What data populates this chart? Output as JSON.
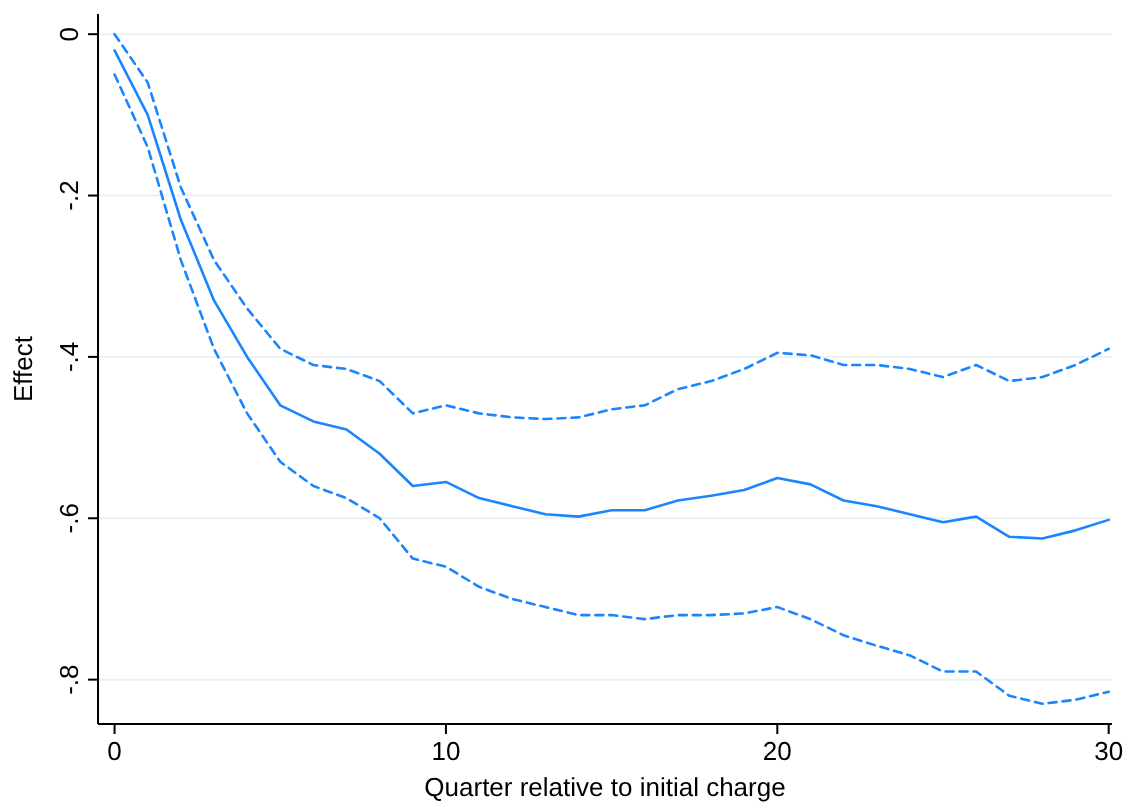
{
  "chart_data": {
    "type": "line",
    "xlabel": "Quarter relative to initial charge",
    "ylabel": "Effect",
    "x": [
      0,
      1,
      2,
      3,
      4,
      5,
      6,
      7,
      8,
      9,
      10,
      11,
      12,
      13,
      14,
      15,
      16,
      17,
      18,
      19,
      20,
      21,
      22,
      23,
      24,
      25,
      26,
      27,
      28,
      29,
      30
    ],
    "series": [
      {
        "color": "#1a85ff",
        "line_style": "solid",
        "values": [
          -0.02,
          -0.1,
          -0.23,
          -0.33,
          -0.4,
          -0.46,
          -0.48,
          -0.49,
          -0.52,
          -0.56,
          -0.555,
          -0.575,
          -0.585,
          -0.595,
          -0.598,
          -0.59,
          -0.59,
          -0.578,
          -0.572,
          -0.565,
          -0.55,
          -0.558,
          -0.578,
          -0.585,
          -0.595,
          -0.605,
          -0.598,
          -0.623,
          -0.625,
          -0.615,
          -0.602
        ]
      },
      {
        "color": "#1a85ff",
        "line_style": "dashed",
        "values": [
          0.0,
          -0.06,
          -0.19,
          -0.28,
          -0.34,
          -0.39,
          -0.41,
          -0.415,
          -0.43,
          -0.47,
          -0.46,
          -0.47,
          -0.475,
          -0.477,
          -0.475,
          -0.465,
          -0.46,
          -0.44,
          -0.43,
          -0.415,
          -0.395,
          -0.398,
          -0.41,
          -0.41,
          -0.415,
          -0.425,
          -0.41,
          -0.43,
          -0.425,
          -0.41,
          -0.39
        ]
      },
      {
        "color": "#1a85ff",
        "line_style": "dashed",
        "values": [
          -0.05,
          -0.14,
          -0.28,
          -0.39,
          -0.47,
          -0.53,
          -0.56,
          -0.575,
          -0.6,
          -0.65,
          -0.66,
          -0.685,
          -0.7,
          -0.71,
          -0.72,
          -0.72,
          -0.725,
          -0.72,
          -0.72,
          -0.718,
          -0.71,
          -0.725,
          -0.745,
          -0.758,
          -0.77,
          -0.79,
          -0.79,
          -0.82,
          -0.83,
          -0.825,
          -0.815
        ]
      }
    ],
    "xlim": [
      -0.5,
      30.1
    ],
    "xticks": [
      0,
      10,
      20,
      30
    ],
    "ylim": [
      -0.855,
      0.025
    ],
    "yticks": [
      {
        "value": 0,
        "label": "0"
      },
      {
        "value": -0.2,
        "label": "-.2"
      },
      {
        "value": -0.4,
        "label": "-.4"
      },
      {
        "value": -0.6,
        "label": "-.6"
      },
      {
        "value": -0.8,
        "label": "-.8"
      }
    ],
    "grid": "y",
    "marker": "none"
  }
}
